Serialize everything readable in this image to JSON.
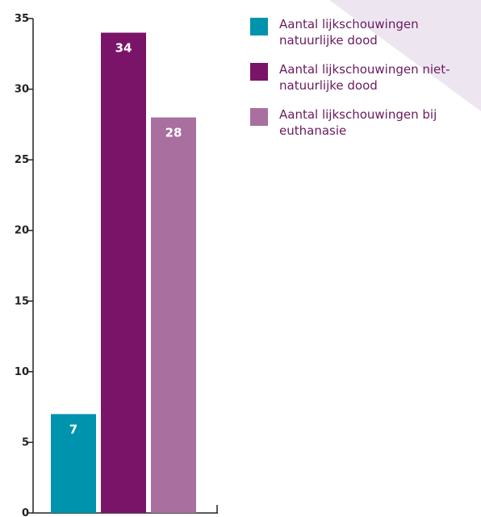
{
  "chart_data": {
    "type": "bar",
    "categories": [
      "Aantal lijkschouwingen natuurlijke dood",
      "Aantal lijkschouwingen niet-natuurlijke dood",
      "Aantal lijkschouwingen bij euthanasie"
    ],
    "values": [
      7,
      34,
      28
    ],
    "value_labels": [
      "7",
      "34",
      "28"
    ],
    "colors": [
      "#0093ae",
      "#7a1468",
      "#a86f9f"
    ],
    "ylim": [
      0,
      35
    ],
    "yticks": [
      0,
      5,
      10,
      15,
      20,
      25,
      30,
      35
    ],
    "ytick_labels": [
      "0",
      "5",
      "10",
      "15",
      "20",
      "25",
      "30",
      "35"
    ],
    "legend_position": "top-right",
    "grid": false
  }
}
